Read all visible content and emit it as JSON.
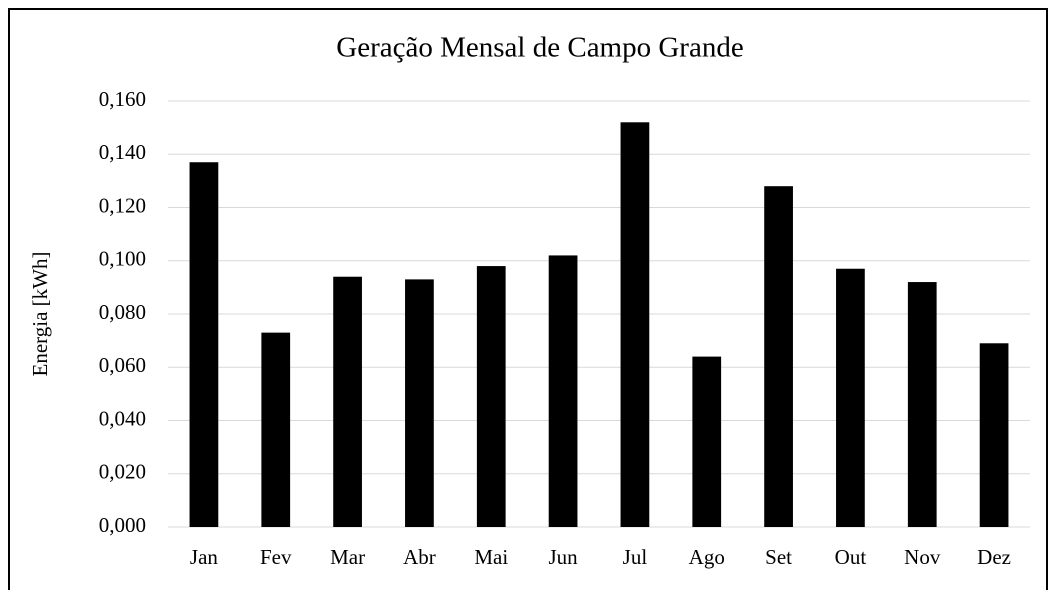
{
  "chart_data": {
    "type": "bar",
    "title": "Geração Mensal de Campo Grande",
    "y_label": "Energia [kWh]",
    "categories": [
      "Jan",
      "Fev",
      "Mar",
      "Abr",
      "Mai",
      "Jun",
      "Jul",
      "Ago",
      "Set",
      "Out",
      "Nov",
      "Dez"
    ],
    "values": [
      0.137,
      0.073,
      0.094,
      0.093,
      0.098,
      0.102,
      0.152,
      0.064,
      0.128,
      0.097,
      0.092,
      0.069
    ],
    "color": "#000000",
    "ylim": [
      0,
      0.16
    ],
    "yticks": [
      {
        "value": 0,
        "label": "0,000"
      },
      {
        "value": 0.02,
        "label": "0,020"
      },
      {
        "value": 0.04,
        "label": "0,040"
      },
      {
        "value": 0.06,
        "label": "0,060"
      },
      {
        "value": 0.08,
        "label": "0,080"
      },
      {
        "value": 0.1,
        "label": "0,100"
      },
      {
        "value": 0.12,
        "label": "0,120"
      },
      {
        "value": 0.14,
        "label": "0,140"
      },
      {
        "value": 0.16,
        "label": "0,160"
      }
    ],
    "grid": true
  }
}
